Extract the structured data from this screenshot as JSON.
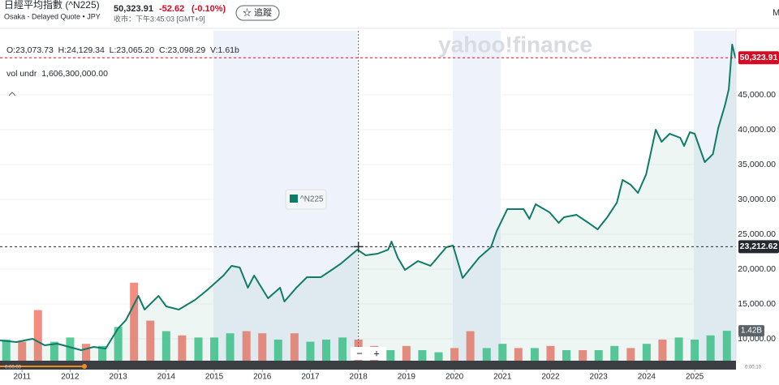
{
  "header": {
    "title": "日經平均指數 (^N225)",
    "subtitle": "Osaka - Delayed Quote • JPY",
    "price": "50,323.91",
    "change": "-52.62",
    "change_percent": "(-0.10%)",
    "market_time": "收市：下午3:45:03 [GMT+9]",
    "follow_button": "☆ 追蹤",
    "menu_letter": "M"
  },
  "overlay": {
    "ohlc": "O:23,073.73  H:24,129.34  L:23,065.20  C:23,098.29  V:1.61b",
    "volume_study": "vol undr  1,606,300,000.00",
    "watermark": "yahoo!finance",
    "zoom_out": "−",
    "zoom_in": "+",
    "time_start": "0:00:00",
    "time_end": "0:00:10"
  },
  "chart_data": {
    "type": "line",
    "x": [
      2010.54,
      2010.88,
      2011.22,
      2011.47,
      2011.73,
      2011.98,
      2012.23,
      2012.49,
      2012.74,
      2013.0,
      2013.16,
      2013.42,
      2013.55,
      2013.84,
      2014.0,
      2014.26,
      2014.6,
      2014.85,
      2015.19,
      2015.36,
      2015.53,
      2015.7,
      2015.83,
      2016.12,
      2016.37,
      2016.46,
      2016.71,
      2016.93,
      2017.22,
      2017.47,
      2017.64,
      2017.98,
      2018.15,
      2018.4,
      2018.62,
      2018.69,
      2018.82,
      2018.97,
      2019.24,
      2019.5,
      2019.83,
      2019.97,
      2020.17,
      2020.51,
      2020.76,
      2020.88,
      2021.1,
      2021.44,
      2021.56,
      2021.69,
      2021.98,
      2022.17,
      2022.28,
      2022.54,
      2022.79,
      2022.98,
      2023.18,
      2023.38,
      2023.5,
      2023.67,
      2023.82,
      2023.99,
      2024.19,
      2024.31,
      2024.48,
      2024.7,
      2024.78,
      2024.9,
      2025.0,
      2025.21,
      2025.38,
      2025.49,
      2025.63,
      2025.71,
      2025.78,
      2025.85
    ],
    "series": [
      {
        "name": "^N225",
        "color": "#0e7c66",
        "values": [
          9770,
          9530,
          10000,
          9070,
          9300,
          8840,
          8370,
          8840,
          8600,
          11510,
          12670,
          16160,
          14190,
          16160,
          14650,
          14190,
          15580,
          16980,
          19070,
          20470,
          20230,
          17330,
          19070,
          15810,
          17330,
          15350,
          17330,
          18840,
          18840,
          20000,
          20810,
          22790,
          21980,
          22210,
          22790,
          23950,
          21630,
          19880,
          21160,
          20470,
          23140,
          23370,
          18720,
          21630,
          23140,
          25470,
          28600,
          28600,
          27210,
          29300,
          28140,
          26630,
          27440,
          27790,
          26630,
          25700,
          27440,
          29530,
          32790,
          32090,
          30930,
          33600,
          40000,
          38260,
          39420,
          38840,
          37670,
          39650,
          39420,
          35350,
          36510,
          40230,
          43490,
          45810,
          52210,
          50230
        ]
      }
    ],
    "volume": {
      "x": [
        2010.67,
        2011.0,
        2011.33,
        2011.67,
        2012.0,
        2012.33,
        2012.67,
        2013.0,
        2013.33,
        2013.67,
        2014.0,
        2014.33,
        2014.67,
        2015.0,
        2015.33,
        2015.67,
        2016.0,
        2016.33,
        2016.67,
        2017.0,
        2017.33,
        2017.67,
        2018.0,
        2018.33,
        2018.67,
        2019.0,
        2019.33,
        2019.67,
        2020.0,
        2020.33,
        2020.67,
        2021.0,
        2021.33,
        2021.67,
        2022.0,
        2022.33,
        2022.67,
        2023.0,
        2023.33,
        2023.67,
        2024.0,
        2024.33,
        2024.67,
        2025.0,
        2025.33,
        2025.67
      ],
      "values": [
        1.0,
        0.9,
        2.4,
        0.9,
        1.1,
        0.8,
        0.7,
        1.6,
        3.7,
        1.9,
        1.4,
        1.2,
        1.1,
        1.1,
        1.3,
        1.4,
        1.3,
        1.0,
        1.3,
        0.9,
        1.0,
        1.1,
        1.0,
        0.7,
        0.5,
        0.7,
        0.5,
        0.4,
        0.6,
        1.4,
        0.6,
        0.8,
        0.6,
        0.6,
        0.7,
        0.5,
        0.5,
        0.5,
        0.7,
        0.6,
        0.8,
        1.0,
        1.1,
        1.0,
        1.2,
        1.42
      ],
      "colors": [
        "#3ec38a",
        "#f2786a",
        "#f2786a",
        "#3ec38a",
        "#3ec38a",
        "#f2786a",
        "#3ec38a",
        "#3ec38a",
        "#f2786a",
        "#f2786a",
        "#3ec38a",
        "#f2786a",
        "#3ec38a",
        "#3ec38a",
        "#3ec38a",
        "#f2786a",
        "#f2786a",
        "#3ec38a",
        "#f2786a",
        "#3ec38a",
        "#3ec38a",
        "#3ec38a",
        "#f2786a",
        "#f2786a",
        "#3ec38a",
        "#f2786a",
        "#3ec38a",
        "#3ec38a",
        "#f2786a",
        "#f2786a",
        "#3ec38a",
        "#3ec38a",
        "#f2786a",
        "#3ec38a",
        "#f2786a",
        "#3ec38a",
        "#f2786a",
        "#3ec38a",
        "#3ec38a",
        "#f2786a",
        "#3ec38a",
        "#f2786a",
        "#3ec38a",
        "#3ec38a",
        "#3ec38a",
        "#3ec38a"
      ],
      "ylim": [
        0,
        15.65
      ],
      "last_label": {
        "value": 1.42,
        "label": "1.42B"
      }
    },
    "xlim": [
      2010.54,
      2025.86
    ],
    "xticks": [
      2011,
      2012,
      2013,
      2014,
      2015,
      2016,
      2017,
      2018,
      2019,
      2020,
      2021,
      2022,
      2023,
      2024,
      2025
    ],
    "ylim": [
      6860,
      54190
    ],
    "yticks": [
      {
        "value": 10000,
        "label": "10,000.00"
      },
      {
        "value": 15000,
        "label": "15,000.00"
      },
      {
        "value": 20000,
        "label": "20,000.00"
      },
      {
        "value": 25000,
        "label": "25,000.00"
      },
      {
        "value": 30000,
        "label": "30,000.00"
      },
      {
        "value": 35000,
        "label": "35,000.00"
      },
      {
        "value": 40000,
        "label": "40,000.00"
      },
      {
        "value": 45000,
        "label": "45,000.00"
      }
    ],
    "grid": true,
    "price_lines": [
      {
        "value": 50323.91,
        "label": "50,323.91",
        "color": "#d60a22"
      },
      {
        "value": 23212.62,
        "label": "23,212.62",
        "color": "#232a31"
      }
    ],
    "crosshair_x": 2018.0
  }
}
